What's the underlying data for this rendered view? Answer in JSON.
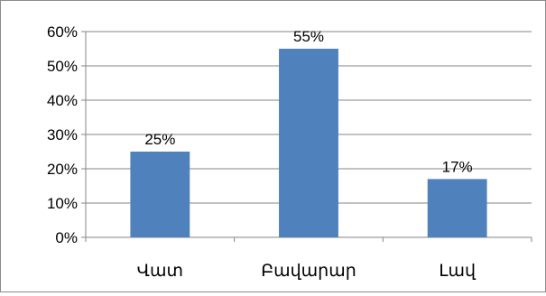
{
  "chart_data": {
    "type": "bar",
    "categories": [
      "Վատ",
      "Բավարար",
      "Լավ"
    ],
    "values": [
      25,
      55,
      17
    ],
    "data_labels": [
      "25%",
      "55%",
      "17%"
    ],
    "y_ticks": [
      "0%",
      "10%",
      "20%",
      "30%",
      "40%",
      "50%",
      "60%"
    ],
    "ylim": [
      0,
      60
    ],
    "grid": true,
    "legend": "none",
    "colors": {
      "bar": "#4f81bd",
      "grid": "#868686",
      "axis": "#868686"
    }
  }
}
